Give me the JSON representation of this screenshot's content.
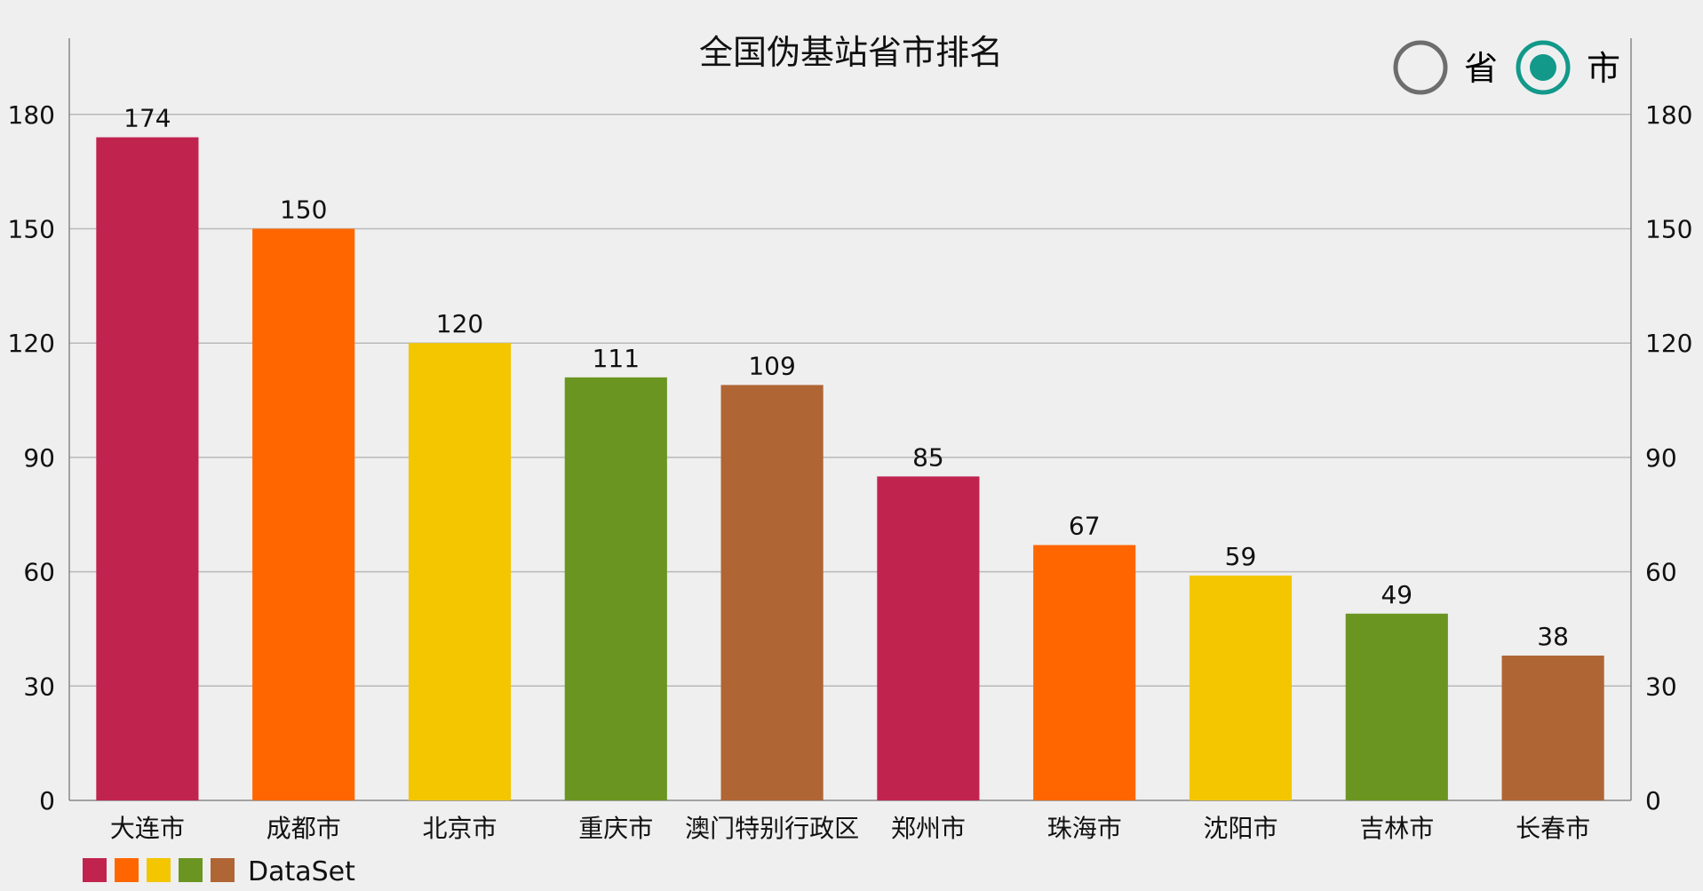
{
  "chart_data": {
    "type": "bar",
    "title": "全国伪基站省市排名",
    "categories": [
      "大连市",
      "成都市",
      "北京市",
      "重庆市",
      "澳门特别行政区",
      "郑州市",
      "珠海市",
      "沈阳市",
      "吉林市",
      "长春市"
    ],
    "series": [
      {
        "name": "DataSet",
        "values": [
          174,
          150,
          120,
          111,
          109,
          85,
          67,
          59,
          49,
          38
        ]
      }
    ],
    "ylim": [
      0,
      200
    ],
    "yticks": [
      0,
      30,
      60,
      90,
      120,
      150,
      180
    ],
    "xlabel": "",
    "ylabel": "",
    "grid": true,
    "dual_y_axis": true,
    "legend": "bottom-left",
    "colors": [
      "#c1234f",
      "#ff6600",
      "#f3c600",
      "#6b9521",
      "#b06535"
    ]
  },
  "toggle": {
    "options": [
      {
        "label": "省",
        "selected": false
      },
      {
        "label": "市",
        "selected": true
      }
    ]
  },
  "legend": {
    "label": "DataSet"
  },
  "colors": {
    "background": "#efefef",
    "grid": "#b9b9b9",
    "axis": "#888888",
    "radio_off": "#6d6d6d",
    "radio_on": "#12998a"
  }
}
